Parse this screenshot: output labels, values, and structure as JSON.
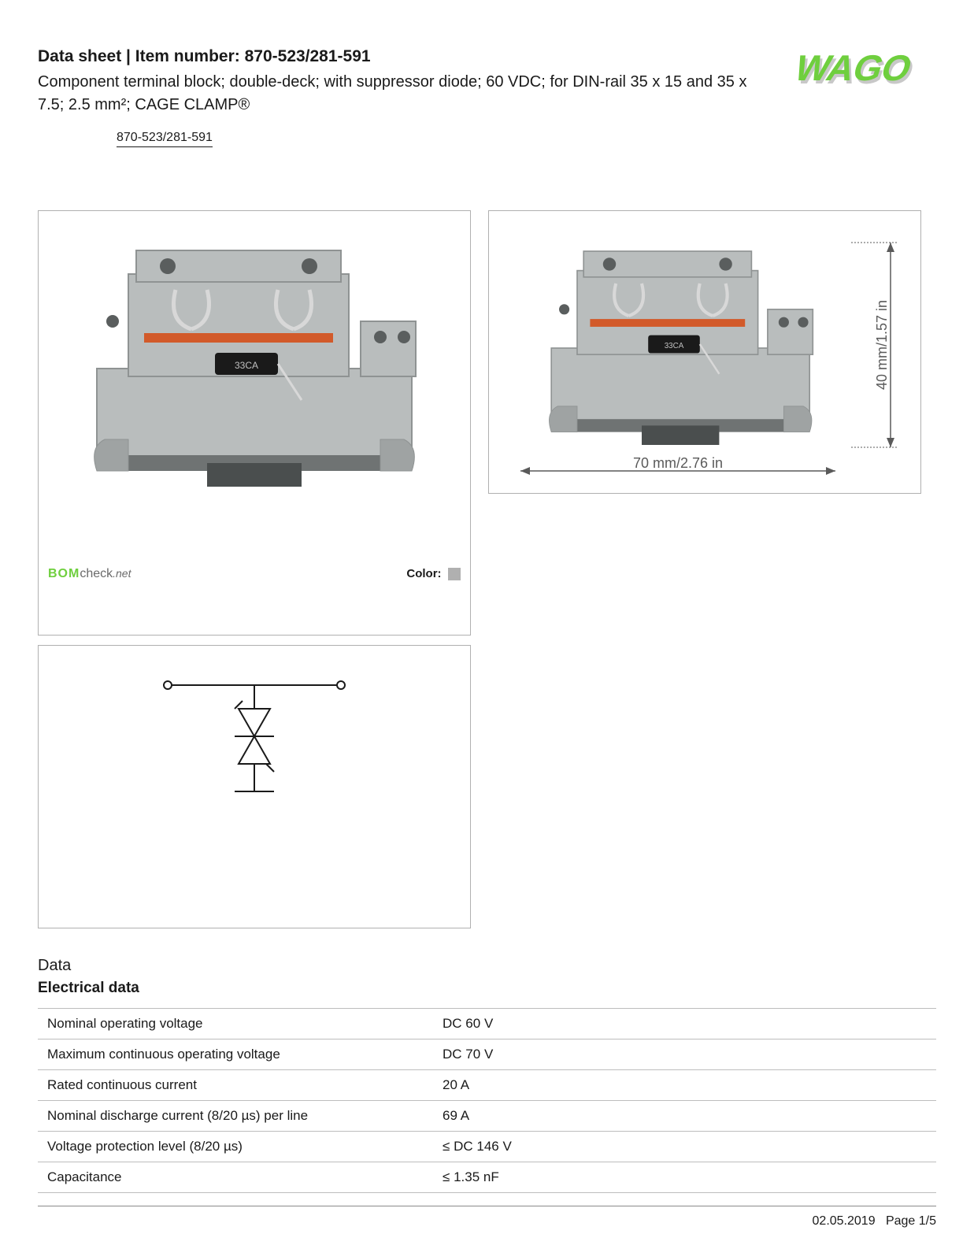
{
  "header": {
    "title": "Data sheet  |  Item number: 870-523/281-591",
    "description": "Component terminal block; double-deck; with suppressor diode; 60 VDC; for DIN-rail 35 x 15 and 35 x 7.5; 2.5 mm²; CAGE CLAMP®",
    "item_link": "870-523/281-591",
    "logo": {
      "text": "WAGO",
      "fill": "#6fcf3e",
      "shadow": "#c8c8c8"
    }
  },
  "images": {
    "box1": {
      "bomcheck_bom": "BOM",
      "bomcheck_check": "check",
      "bomcheck_net": ".net",
      "color_label": "Color:",
      "swatch_color": "#b0b0b0",
      "product_body_color": "#b9bdbd",
      "product_shadow": "#8f9393",
      "product_accent": "#d25a2a",
      "component_label": "33CA"
    },
    "box2": {
      "width_label": "70 mm/2.76 in",
      "height_label": "40 mm/1.57 in",
      "dim_color": "#5a5a5a",
      "product_body_color": "#b9bdbd"
    },
    "box3": {
      "line_color": "#1a1a1a"
    }
  },
  "data_section": {
    "heading": "Data",
    "subheading": "Electrical data",
    "rows": [
      {
        "label": "Nominal operating voltage",
        "value": "DC 60 V"
      },
      {
        "label": "Maximum continuous operating voltage",
        "value": "DC 70 V"
      },
      {
        "label": "Rated continuous current",
        "value": "20 A"
      },
      {
        "label": "Nominal discharge current (8/20 µs) per line",
        "value": "69 A"
      },
      {
        "label": "Voltage protection level (8/20 µs)",
        "value": "≤ DC 146 V"
      },
      {
        "label": "Capacitance",
        "value": "≤ 1.35 nF"
      }
    ]
  },
  "footer": {
    "date": "02.05.2019",
    "page": "Page 1/5"
  }
}
